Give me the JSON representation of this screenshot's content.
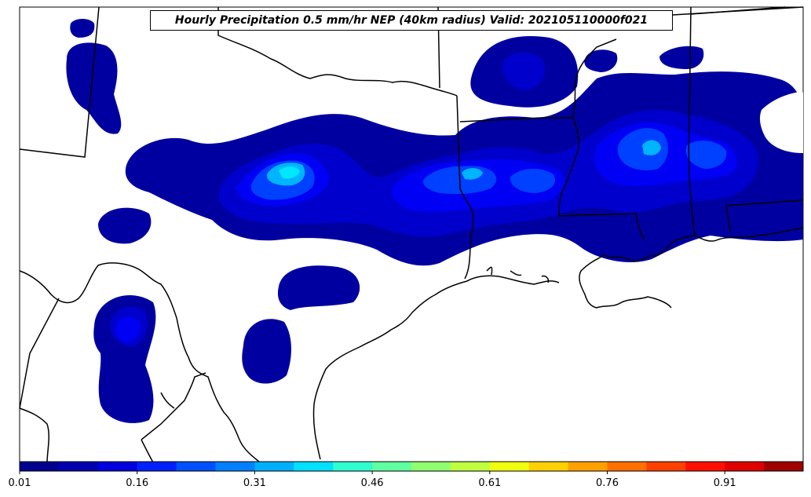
{
  "title": "Hourly Precipitation 0.5 mm/hr NEP (40km radius) Valid: 202105110000f021",
  "colorbar": {
    "ticks": [
      "0.01",
      "0.16",
      "0.31",
      "0.46",
      "0.61",
      "0.76",
      "0.91"
    ],
    "colors": [
      "#00008f",
      "#0000af",
      "#0000df",
      "#0020ff",
      "#0050ff",
      "#0080ff",
      "#00b0ff",
      "#00e0ff",
      "#30ffcf",
      "#60ff9f",
      "#90ff6f",
      "#c0ff3f",
      "#f0ff0f",
      "#ffd000",
      "#ffa000",
      "#ff7000",
      "#ff4000",
      "#ff1000",
      "#df0000",
      "#a00000"
    ]
  },
  "precip_colors": {
    "level1": "#0000a0",
    "level2": "#0000cd",
    "level3": "#0000f5",
    "level4": "#0040ff",
    "level5": "#00b4ff",
    "level6": "#00e6ff"
  }
}
